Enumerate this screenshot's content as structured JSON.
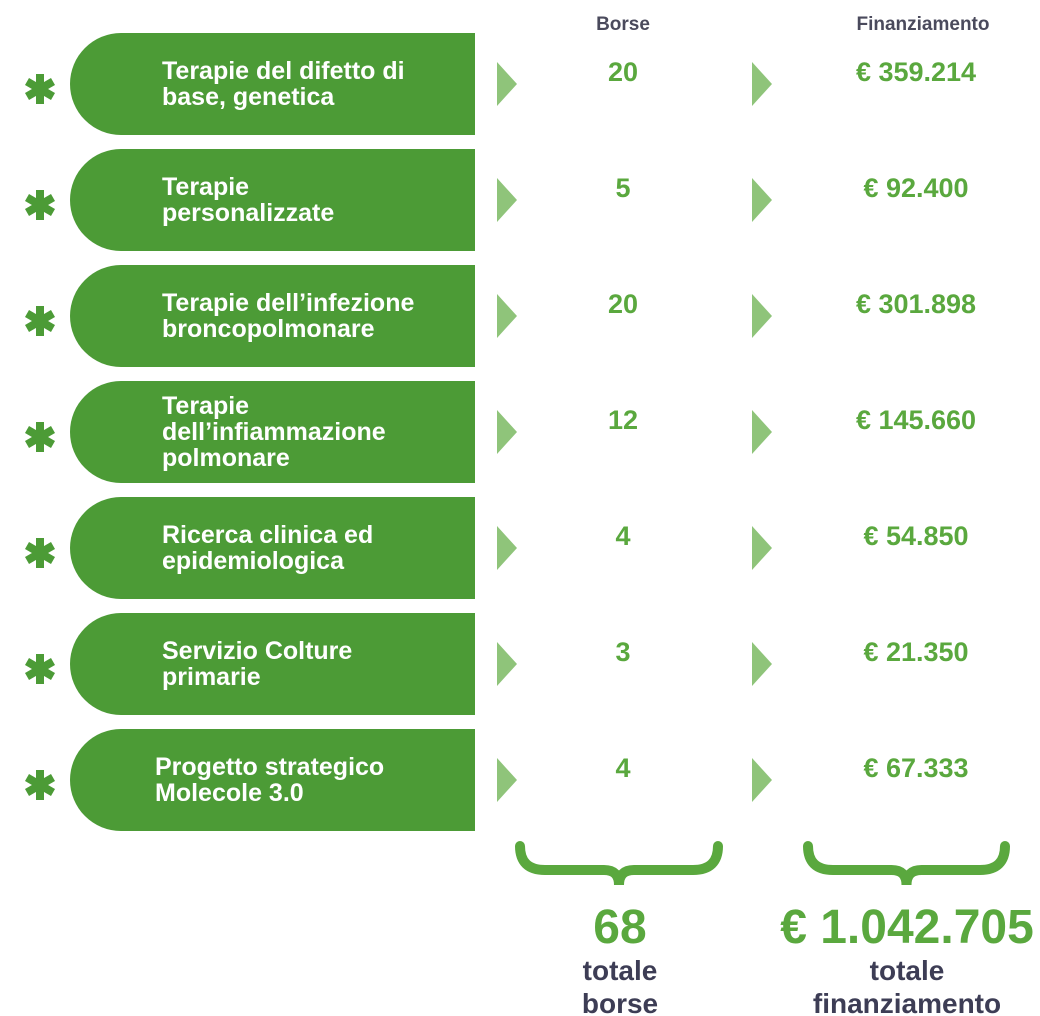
{
  "header": {
    "borse": "Borse",
    "finanziamento": "Finanziamento"
  },
  "rows": [
    {
      "lines": [
        "Terapie del difetto di",
        "base, genetica"
      ],
      "borse": "20",
      "finanziamento": "€ 359.214",
      "icon": "dna"
    },
    {
      "lines": [
        "Terapie",
        "personalizzate"
      ],
      "borse": "5",
      "finanziamento": "€ 92.400",
      "icon": "pill"
    },
    {
      "lines": [
        "Terapie dell’infezione",
        "broncopolmonare"
      ],
      "borse": "20",
      "finanziamento": "€ 301.898",
      "icon": "bacteria"
    },
    {
      "lines": [
        "Terapie",
        "dell’infiammazione",
        "polmonare"
      ],
      "borse": "12",
      "finanziamento": "€ 145.660",
      "icon": "lungs"
    },
    {
      "lines": [
        "Ricerca clinica ed",
        "epidemiologica"
      ],
      "borse": "4",
      "finanziamento": "€ 54.850",
      "icon": "stethoscope"
    },
    {
      "lines": [
        "Servizio Colture",
        "primarie"
      ],
      "borse": "3",
      "finanziamento": "€ 21.350",
      "icon": null
    },
    {
      "lines": [
        "Progetto strategico",
        "Molecole 3.0"
      ],
      "borse": "4",
      "finanziamento": "€ 67.333",
      "icon": null
    }
  ],
  "totals": {
    "borse": {
      "value": "68",
      "lines": [
        "totale",
        "borse"
      ]
    },
    "finanziamento": {
      "value": "€ 1.042.705",
      "lines": [
        "totale",
        "finanziamento"
      ]
    }
  }
}
